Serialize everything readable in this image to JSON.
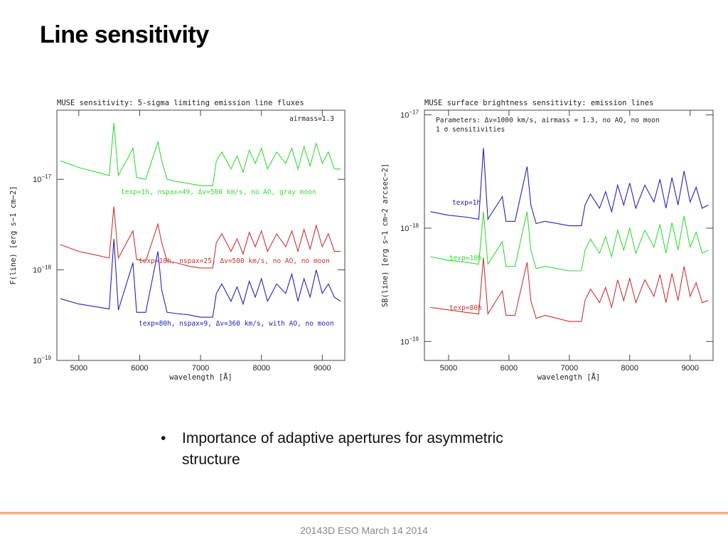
{
  "title": "Line sensitivity",
  "bullets": [
    "Importance of adaptive apertures for asymmetric structure"
  ],
  "footer": "20143D ESO March 14 2014",
  "chart_data": [
    {
      "type": "line",
      "title": "MUSE sensitivity: 5-sigma limiting emission line fluxes",
      "xlabel": "wavelength [Å]",
      "ylabel": "F(line) [erg s−1 cm−2]",
      "annotations": [
        "airmass=1.3"
      ],
      "log_y": true,
      "xlim": [
        4640,
        9370
      ],
      "ylim": [
        1e-19,
        5.8e-17
      ],
      "xticks": [
        5000,
        6000,
        7000,
        8000,
        9000
      ],
      "yticks": [
        {
          "value": 1e-17,
          "label": "10−17"
        },
        {
          "value": 1e-18,
          "label": "10−18"
        },
        {
          "value": 1e-19,
          "label": "10−19"
        }
      ],
      "x": [
        4700,
        5000,
        5300,
        5500,
        5577,
        5650,
        5890,
        5950,
        6100,
        6300,
        6363,
        6450,
        6600,
        6800,
        7000,
        7200,
        7260,
        7350,
        7500,
        7600,
        7700,
        7800,
        7900,
        8000,
        8100,
        8250,
        8400,
        8500,
        8600,
        8700,
        8800,
        8900,
        9000,
        9100,
        9200,
        9300
      ],
      "series": [
        {
          "name": "texp=1h, nspax=49, Δv=500 km/s, no AO, gray moon",
          "color": "#33dd33",
          "values": [
            1.6e-17,
            1.35e-17,
            1.2e-17,
            1.1e-17,
            4.2e-17,
            1.1e-17,
            2.2e-17,
            1.05e-17,
            1e-17,
            2.6e-17,
            1.6e-17,
            1e-17,
            9.5e-18,
            9e-18,
            8.5e-18,
            8.5e-18,
            1.6e-17,
            2e-17,
            1.3e-17,
            1.8e-17,
            1.2e-17,
            2.1e-17,
            1.5e-17,
            2.2e-17,
            1.3e-17,
            2e-17,
            1.5e-17,
            2.2e-17,
            1.3e-17,
            2.3e-17,
            1.4e-17,
            2.5e-17,
            1.5e-17,
            2e-17,
            1.3e-17,
            1.3e-17
          ]
        },
        {
          "name": "texp=10h, nspax=25, Δv=500 km/s, no AO, no moon",
          "color": "#cc3333",
          "values": [
            1.9e-18,
            1.6e-18,
            1.45e-18,
            1.35e-18,
            5e-18,
            1.35e-18,
            2.7e-18,
            1.3e-18,
            1.25e-18,
            3.2e-18,
            2e-18,
            1.25e-18,
            1.2e-18,
            1.1e-18,
            1.05e-18,
            1.05e-18,
            2e-18,
            2.5e-18,
            1.6e-18,
            2.2e-18,
            1.5e-18,
            2.6e-18,
            1.8e-18,
            2.7e-18,
            1.6e-18,
            2.5e-18,
            1.8e-18,
            2.7e-18,
            1.6e-18,
            2.8e-18,
            1.7e-18,
            3.1e-18,
            1.8e-18,
            2.5e-18,
            1.6e-18,
            1.6e-18
          ]
        },
        {
          "name": "texp=80h, nspax=9, Δv=360 km/s, with AO, no moon",
          "color": "#2222bb",
          "values": [
            4.8e-19,
            4.2e-19,
            3.9e-19,
            3.7e-19,
            2.2e-18,
            3.6e-19,
            1.2e-18,
            3.4e-19,
            3.4e-19,
            1.6e-18,
            6e-19,
            3.4e-19,
            3.3e-19,
            3.2e-19,
            3e-19,
            3e-19,
            5.5e-19,
            7e-19,
            4.5e-19,
            6.5e-19,
            4.2e-19,
            7.5e-19,
            5e-19,
            8e-19,
            4.5e-19,
            7e-19,
            5.5e-19,
            9e-19,
            4.5e-19,
            8e-19,
            5e-19,
            1e-18,
            5.5e-19,
            7e-19,
            5e-19,
            4.5e-19
          ]
        }
      ]
    },
    {
      "type": "line",
      "title": "MUSE surface brightness sensitivity: emission lines",
      "xlabel": "wavelength [Å]",
      "ylabel": "SB(line) [erg s−1 cm−2 arcsec−2]",
      "annotations": [
        "Parameters: Δv=1000 km/s, airmass = 1.3, no AO, no moon",
        "1 σ sensitivities"
      ],
      "log_y": true,
      "xlim": [
        4600,
        9380
      ],
      "ylim": [
        6.8e-20,
        1.1e-17
      ],
      "xticks": [
        5000,
        6000,
        7000,
        8000,
        9000
      ],
      "yticks": [
        {
          "value": 1e-17,
          "label": "10−17"
        },
        {
          "value": 1e-18,
          "label": "10−18"
        },
        {
          "value": 1e-19,
          "label": "10−19"
        }
      ],
      "x": [
        4700,
        5000,
        5300,
        5500,
        5577,
        5650,
        5890,
        5950,
        6100,
        6300,
        6363,
        6450,
        6600,
        6800,
        7000,
        7200,
        7260,
        7350,
        7500,
        7600,
        7700,
        7800,
        7900,
        8000,
        8100,
        8250,
        8400,
        8500,
        8600,
        8700,
        8800,
        8900,
        9000,
        9100,
        9200,
        9300
      ],
      "series": [
        {
          "name": "texp=1h",
          "color": "#2222bb",
          "values": [
            1.4e-18,
            1.3e-18,
            1.25e-18,
            1.2e-18,
            5.1e-18,
            1.2e-18,
            1.9e-18,
            1.15e-18,
            1.15e-18,
            3.5e-18,
            1.6e-18,
            1.1e-18,
            1.15e-18,
            1.1e-18,
            1.05e-18,
            1.05e-18,
            1.6e-18,
            2e-18,
            1.5e-18,
            2.1e-18,
            1.4e-18,
            2.4e-18,
            1.6e-18,
            2.5e-18,
            1.5e-18,
            2.4e-18,
            1.7e-18,
            2.7e-18,
            1.5e-18,
            2.8e-18,
            1.6e-18,
            3.2e-18,
            1.7e-18,
            2.3e-18,
            1.5e-18,
            1.6e-18
          ]
        },
        {
          "name": "texp=10h",
          "color": "#33dd33",
          "values": [
            5.6e-19,
            5.2e-19,
            5e-19,
            4.8e-19,
            1.4e-18,
            4.8e-19,
            7.6e-19,
            4.6e-19,
            4.6e-19,
            1.4e-18,
            6.4e-19,
            4.4e-19,
            4.6e-19,
            4.4e-19,
            4.2e-19,
            4.2e-19,
            6.4e-19,
            8e-19,
            6e-19,
            8.4e-19,
            5.6e-19,
            9.6e-19,
            6.4e-19,
            1e-18,
            6e-19,
            9.6e-19,
            6.8e-19,
            1.08e-18,
            6e-19,
            1.12e-18,
            6.4e-19,
            1.28e-18,
            6.8e-19,
            9.2e-19,
            6e-19,
            6.4e-19
          ]
        },
        {
          "name": "texp=80h",
          "color": "#cc3333",
          "values": [
            2e-19,
            1.9e-19,
            1.8e-19,
            1.75e-19,
            5.5e-19,
            1.75e-19,
            2.8e-19,
            1.7e-19,
            1.7e-19,
            5e-19,
            2.3e-19,
            1.6e-19,
            1.7e-19,
            1.6e-19,
            1.5e-19,
            1.5e-19,
            2.3e-19,
            2.9e-19,
            2.2e-19,
            3e-19,
            2e-19,
            3.5e-19,
            2.3e-19,
            3.6e-19,
            2.2e-19,
            3.5e-19,
            2.5e-19,
            3.9e-19,
            2.2e-19,
            4e-19,
            2.3e-19,
            4.6e-19,
            2.5e-19,
            3.3e-19,
            2.2e-19,
            2.3e-19
          ]
        }
      ]
    }
  ]
}
